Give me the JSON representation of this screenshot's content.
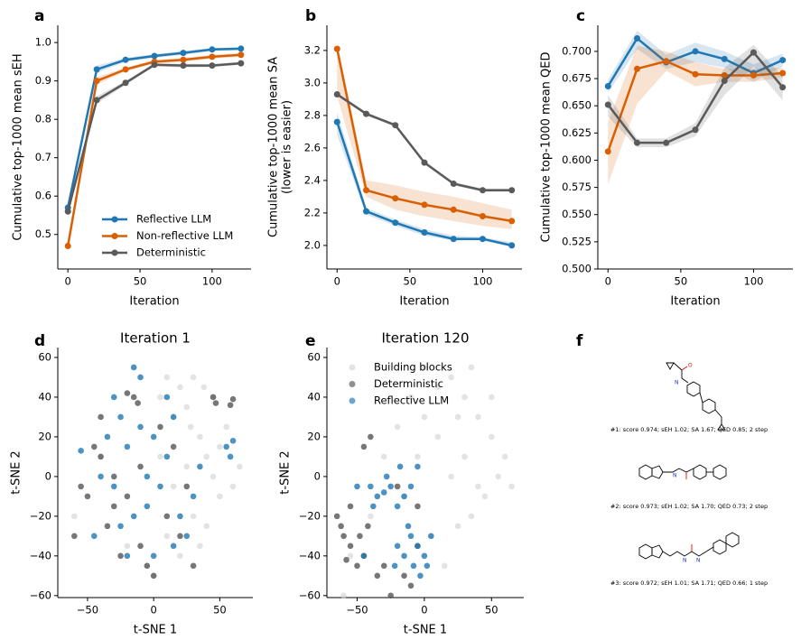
{
  "chart_data": [
    {
      "panel": "a",
      "type": "line",
      "xlabel": "Iteration",
      "ylabel": [
        "Cumulative top-1000 mean sEH"
      ],
      "x": [
        0,
        20,
        40,
        60,
        80,
        100,
        120
      ],
      "xlim": [
        -7,
        127
      ],
      "xticks": [
        0,
        50,
        100
      ],
      "ylim": [
        0.41,
        1.045
      ],
      "yticks": [
        0.5,
        0.6,
        0.7,
        0.8,
        0.9,
        {
          "value": 1.0,
          "label": "1.0"
        }
      ],
      "legend": "lower right",
      "series": [
        {
          "name": "Reflective LLM",
          "color": "#1f77b4",
          "values": [
            0.57,
            0.93,
            0.955,
            0.965,
            0.973,
            0.982,
            0.984
          ],
          "lower": [
            0.56,
            0.92,
            0.95,
            0.96,
            0.968,
            0.978,
            0.98
          ],
          "upper": [
            0.58,
            0.94,
            0.96,
            0.97,
            0.978,
            0.986,
            0.988
          ]
        },
        {
          "name": "Non-reflective LLM",
          "color": "#d95f02",
          "values": [
            0.47,
            0.9,
            0.93,
            0.95,
            0.955,
            0.963,
            0.968
          ],
          "lower": [
            0.465,
            0.89,
            0.925,
            0.945,
            0.95,
            0.958,
            0.963
          ],
          "upper": [
            0.48,
            0.91,
            0.935,
            0.955,
            0.96,
            0.968,
            0.973
          ]
        },
        {
          "name": "Deterministic",
          "color": "#5a5a5a",
          "values": [
            0.56,
            0.85,
            0.895,
            0.942,
            0.94,
            0.94,
            0.946
          ],
          "lower": [
            0.55,
            0.84,
            0.89,
            0.938,
            0.935,
            0.936,
            0.942
          ],
          "upper": [
            0.57,
            0.86,
            0.9,
            0.946,
            0.945,
            0.944,
            0.95
          ]
        }
      ]
    },
    {
      "panel": "b",
      "type": "line",
      "xlabel": "Iteration",
      "ylabel": [
        "Cumulative top-1000 mean SA",
        "(lower is easier)"
      ],
      "x": [
        0,
        20,
        40,
        60,
        80,
        100,
        120
      ],
      "xlim": [
        -7,
        127
      ],
      "xticks": [
        0,
        50,
        100
      ],
      "ylim": [
        1.855,
        3.355
      ],
      "yticks": [
        {
          "value": 2.0,
          "label": "2.0"
        },
        2.2,
        2.4,
        2.6,
        2.8,
        {
          "value": 3.0,
          "label": "3.0"
        },
        3.2
      ],
      "series": [
        {
          "name": "Reflective LLM",
          "color": "#1f77b4",
          "values": [
            2.76,
            2.21,
            2.14,
            2.08,
            2.04,
            2.04,
            2.0
          ],
          "lower": [
            2.68,
            2.19,
            2.12,
            2.06,
            2.03,
            2.03,
            1.99
          ],
          "upper": [
            2.82,
            2.23,
            2.16,
            2.1,
            2.06,
            2.05,
            2.02
          ]
        },
        {
          "name": "Non-reflective LLM",
          "color": "#d95f02",
          "values": [
            3.21,
            2.34,
            2.29,
            2.25,
            2.22,
            2.18,
            2.15
          ],
          "lower": [
            2.92,
            2.3,
            2.22,
            2.18,
            2.15,
            2.12,
            2.1
          ],
          "upper": [
            3.25,
            2.4,
            2.37,
            2.33,
            2.3,
            2.26,
            2.22
          ]
        },
        {
          "name": "Deterministic",
          "color": "#5a5a5a",
          "values": [
            2.93,
            2.81,
            2.74,
            2.51,
            2.38,
            2.34,
            2.34
          ],
          "lower": [
            2.92,
            2.8,
            2.73,
            2.5,
            2.37,
            2.33,
            2.33
          ],
          "upper": [
            2.94,
            2.82,
            2.75,
            2.52,
            2.39,
            2.35,
            2.35
          ]
        }
      ]
    },
    {
      "panel": "c",
      "type": "line",
      "xlabel": "Iteration",
      "ylabel": [
        "Cumulative top-1000 mean QED"
      ],
      "x": [
        0,
        20,
        40,
        60,
        80,
        100,
        120
      ],
      "xlim": [
        -7,
        127
      ],
      "xticks": [
        0,
        50,
        100
      ],
      "ylim": [
        0.5,
        0.724
      ],
      "yticks": [
        {
          "value": 0.5,
          "label": "0.500"
        },
        0.525,
        {
          "value": 0.55,
          "label": "0.550"
        },
        0.575,
        {
          "value": 0.6,
          "label": "0.600"
        },
        0.625,
        {
          "value": 0.65,
          "label": "0.650"
        },
        0.675,
        {
          "value": 0.7,
          "label": "0.700"
        }
      ],
      "series": [
        {
          "name": "Reflective LLM",
          "color": "#1f77b4",
          "values": [
            0.668,
            0.712,
            0.69,
            0.7,
            0.693,
            0.68,
            0.692
          ],
          "lower": [
            0.662,
            0.702,
            0.684,
            0.69,
            0.685,
            0.672,
            0.686
          ],
          "upper": [
            0.674,
            0.719,
            0.697,
            0.708,
            0.7,
            0.688,
            0.698
          ]
        },
        {
          "name": "Non-reflective LLM",
          "color": "#d95f02",
          "values": [
            0.608,
            0.684,
            0.691,
            0.679,
            0.678,
            0.678,
            0.68
          ],
          "lower": [
            0.578,
            0.652,
            0.682,
            0.668,
            0.672,
            0.672,
            0.676
          ],
          "upper": [
            0.635,
            0.705,
            0.7,
            0.69,
            0.684,
            0.684,
            0.685
          ]
        },
        {
          "name": "Deterministic",
          "color": "#5a5a5a",
          "values": [
            0.651,
            0.616,
            0.616,
            0.628,
            0.673,
            0.699,
            0.667
          ],
          "lower": [
            0.64,
            0.612,
            0.612,
            0.622,
            0.66,
            0.686,
            0.655
          ],
          "upper": [
            0.66,
            0.62,
            0.62,
            0.634,
            0.685,
            0.706,
            0.677
          ]
        }
      ]
    },
    {
      "panel": "d",
      "type": "scatter",
      "title": "Iteration 1",
      "xlabel": "t-SNE 1",
      "ylabel": [
        "t-SNE 2"
      ],
      "xlim": [
        -72.5,
        75
      ],
      "xticks": [
        {
          "value": -50,
          "label": "−50"
        },
        0,
        50
      ],
      "ylim": [
        -61,
        65
      ],
      "yticks": [
        {
          "value": -60,
          "label": "−60"
        },
        {
          "value": -40,
          "label": "−40"
        },
        {
          "value": -20,
          "label": "−20"
        },
        0,
        20,
        40,
        60
      ],
      "series": [
        {
          "name": "Building blocks",
          "color": "#d0d0d0",
          "x": [
            10,
            20,
            25,
            30,
            15,
            35,
            40,
            45,
            50,
            30,
            20,
            35,
            5,
            -5,
            0,
            60,
            65,
            55,
            45,
            25,
            15,
            -60,
            -40,
            40,
            10,
            -20,
            50,
            28,
            38,
            5
          ],
          "y": [
            50,
            45,
            35,
            50,
            30,
            20,
            10,
            0,
            -10,
            -20,
            -40,
            -35,
            40,
            -45,
            -50,
            -5,
            5,
            25,
            40,
            5,
            -5,
            -20,
            10,
            -25,
            -30,
            -35,
            15,
            25,
            45,
            10
          ]
        },
        {
          "name": "Deterministic",
          "color": "#555555",
          "x": [
            45,
            47,
            60,
            58,
            -15,
            -12,
            -20,
            -45,
            -40,
            0,
            -5,
            -30,
            -20,
            -10,
            10,
            20,
            -35,
            -50,
            -25,
            15,
            25,
            -40,
            -30,
            5,
            -55,
            -60,
            30,
            -10
          ],
          "y": [
            40,
            37,
            39,
            36,
            40,
            37,
            42,
            15,
            10,
            -50,
            -45,
            0,
            -10,
            5,
            -20,
            -30,
            -25,
            -10,
            -40,
            15,
            -5,
            30,
            -15,
            25,
            -5,
            -30,
            -45,
            -35
          ]
        },
        {
          "name": "Reflective LLM",
          "color": "#1f77b4",
          "x": [
            -10,
            -15,
            -30,
            -25,
            -35,
            -20,
            -10,
            0,
            10,
            5,
            -5,
            -15,
            20,
            25,
            15,
            55,
            58,
            60,
            -55,
            -45,
            -30,
            -40,
            0,
            30,
            15,
            -20,
            -5,
            10,
            35,
            -25
          ],
          "y": [
            50,
            55,
            40,
            30,
            20,
            15,
            25,
            20,
            10,
            -5,
            -15,
            -20,
            -20,
            -30,
            -35,
            15,
            10,
            18,
            13,
            -30,
            -5,
            0,
            -40,
            -10,
            30,
            -40,
            0,
            40,
            5,
            -25
          ]
        }
      ]
    },
    {
      "panel": "e",
      "type": "scatter",
      "title": "Iteration 120",
      "xlabel": "t-SNE 1",
      "ylabel": [
        "t-SNE 2"
      ],
      "xlim": [
        -72.5,
        74
      ],
      "xticks": [
        {
          "value": -50,
          "label": "−50"
        },
        0,
        50
      ],
      "ylim": [
        -61,
        65
      ],
      "yticks": [
        {
          "value": -60,
          "label": "−60"
        },
        {
          "value": -40,
          "label": "−40"
        },
        {
          "value": -20,
          "label": "−20"
        },
        0,
        20,
        40,
        60
      ],
      "legend": "upper left",
      "series": [
        {
          "name": "Building blocks",
          "color": "#d0d0d0",
          "x": [
            0,
            10,
            20,
            30,
            40,
            50,
            60,
            55,
            45,
            35,
            25,
            20,
            30,
            40,
            10,
            0,
            -10,
            -20,
            -30,
            -40,
            -55,
            -60,
            15,
            5,
            -5,
            25,
            50,
            65,
            -15,
            35
          ],
          "y": [
            55,
            45,
            50,
            40,
            30,
            20,
            10,
            0,
            -10,
            -20,
            -25,
            0,
            10,
            -5,
            20,
            30,
            40,
            25,
            10,
            -20,
            -40,
            -60,
            -45,
            -30,
            10,
            30,
            40,
            -5,
            -10,
            55
          ]
        },
        {
          "name": "Deterministic",
          "color": "#555555",
          "x": [
            -40,
            -45,
            -60,
            -55,
            -62,
            -58,
            -50,
            -45,
            -30,
            -35,
            -42,
            -10,
            -15,
            -20,
            -5,
            -25,
            -55,
            -5,
            -48,
            -65
          ],
          "y": [
            20,
            15,
            -30,
            -35,
            -25,
            -42,
            -45,
            -40,
            -45,
            -50,
            -25,
            -55,
            -50,
            -5,
            -15,
            -60,
            -15,
            -35,
            -30,
            -20
          ]
        },
        {
          "name": "Reflective LLM",
          "color": "#1f77b4",
          "x": [
            -40,
            -35,
            -30,
            -25,
            -20,
            -15,
            -10,
            -18,
            -28,
            -10,
            -5,
            0,
            -8,
            -3,
            -15,
            -20,
            5,
            -12,
            -38,
            -22,
            2,
            -45,
            -50,
            -5
          ],
          "y": [
            -5,
            -10,
            -8,
            -5,
            -15,
            -10,
            -5,
            5,
            0,
            -30,
            -35,
            -40,
            -45,
            -50,
            -40,
            -35,
            -30,
            -25,
            -15,
            -45,
            -45,
            -40,
            -5,
            5
          ]
        }
      ]
    }
  ],
  "panel_f": {
    "panel": "f",
    "captions": [
      "#1: score 0.974; sEH 1.02; SA 1.67; QED 0.85; 2 step",
      "#2: score 0.973; sEH 1.02; SA 1.70; QED 0.73; 2 step",
      "#3: score 0.972; sEH 1.01; SA 1.71; QED 0.66; 1 step"
    ]
  }
}
